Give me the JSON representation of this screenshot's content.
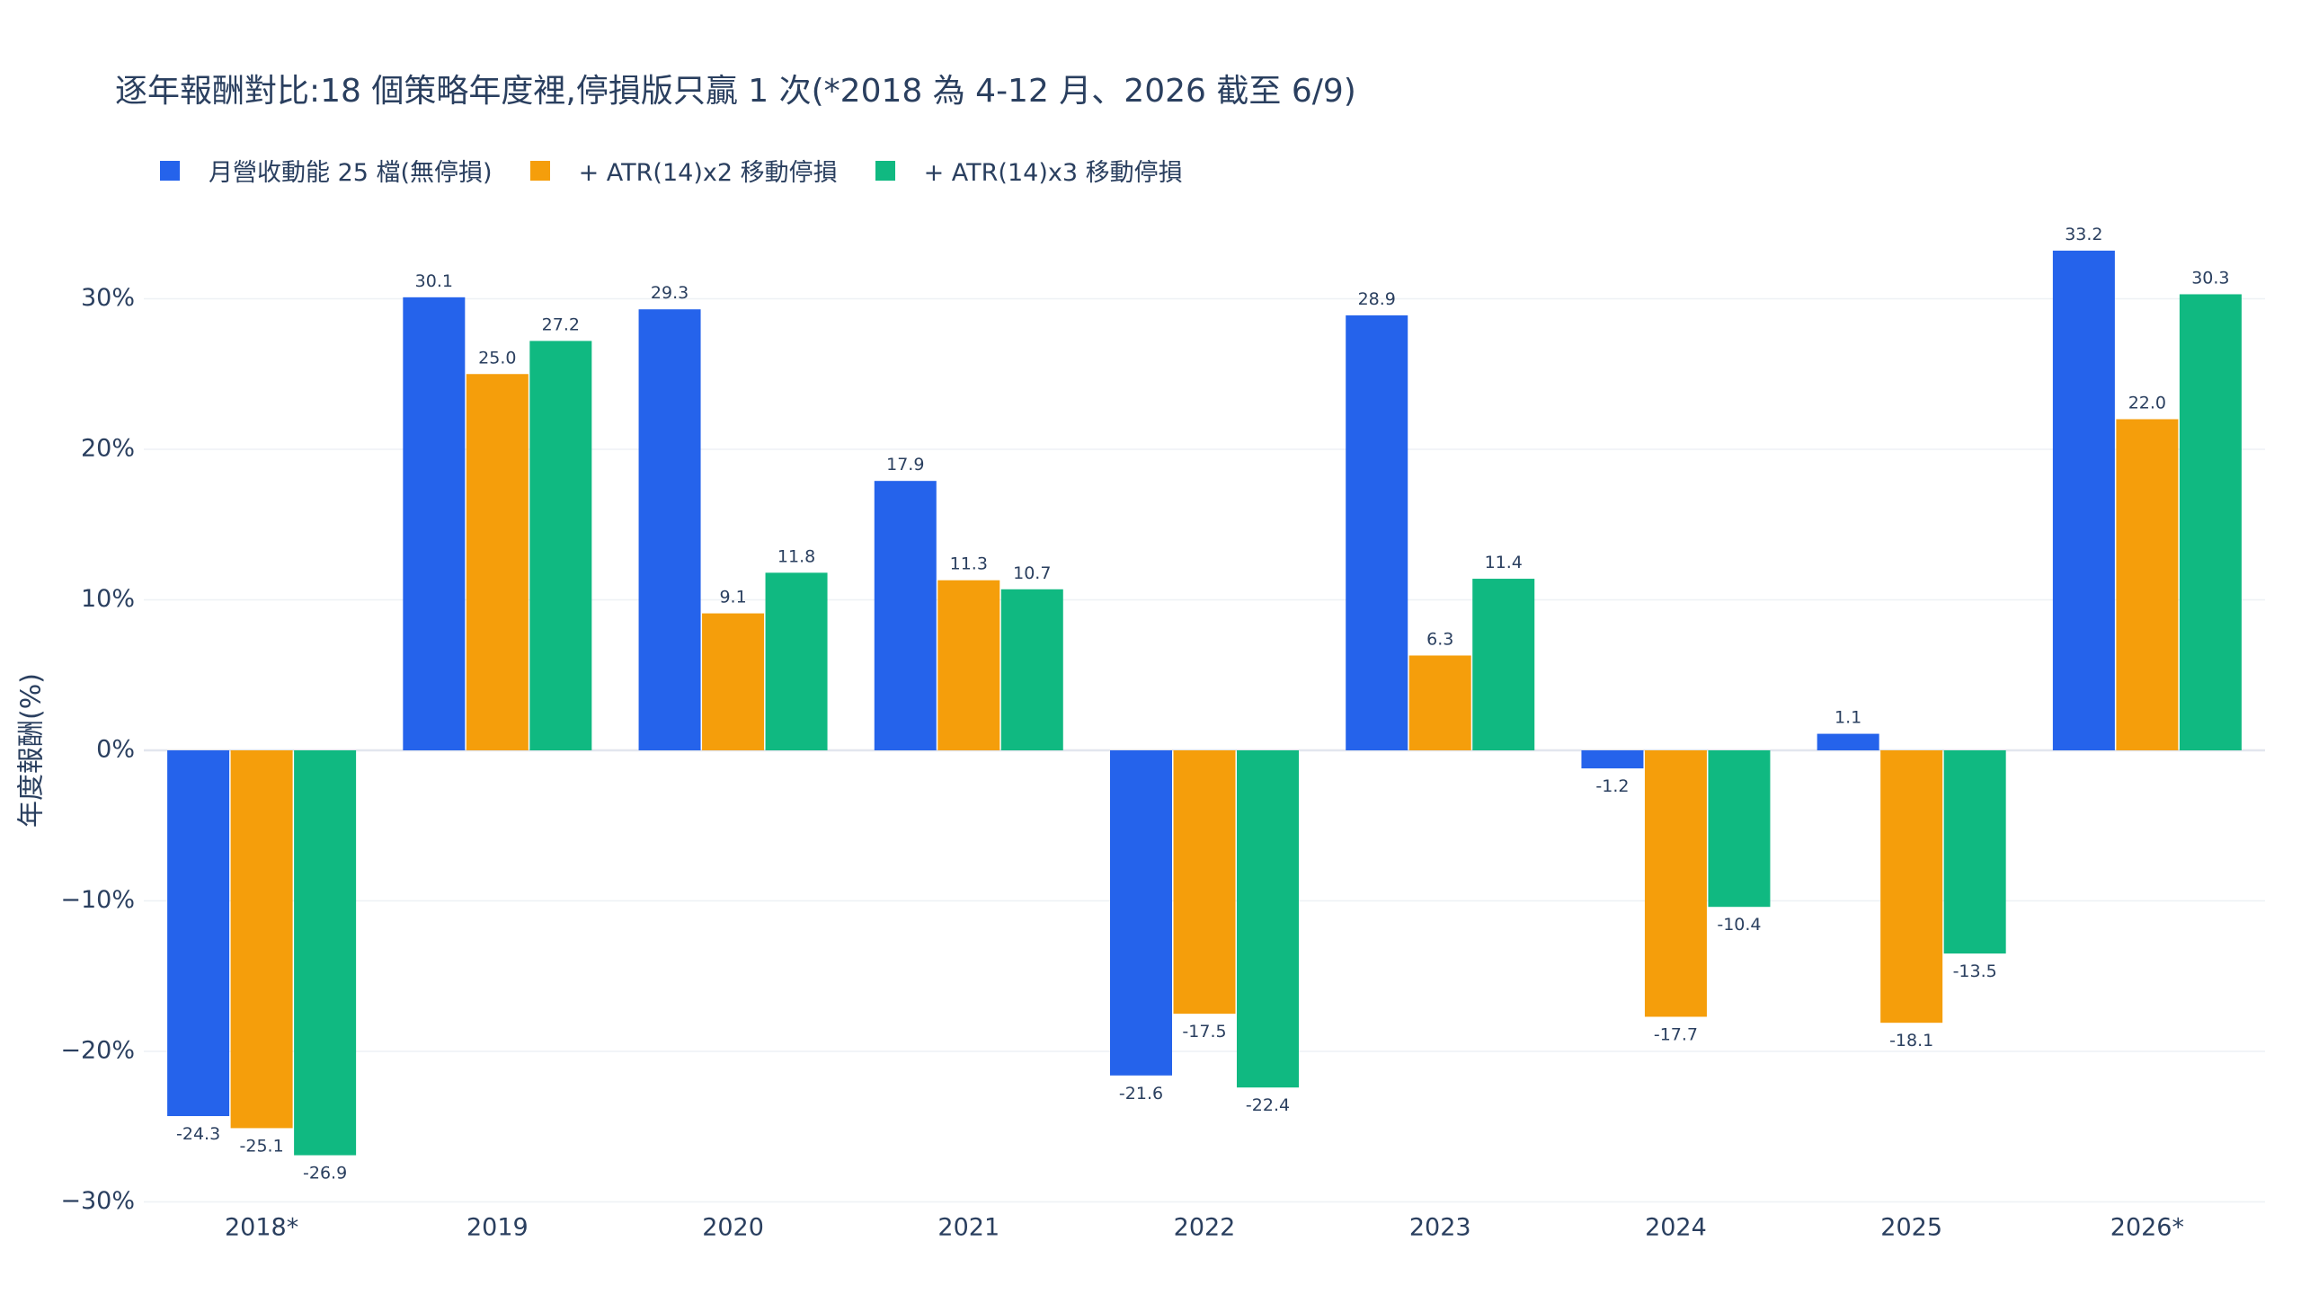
{
  "chart_data": {
    "type": "bar",
    "title": "逐年報酬對比:18 個策略年度裡,停損版只贏 1 次(*2018 為 4-12 月、2026 截至 6/9)",
    "xlabel": "",
    "ylabel": "年度報酬(%)",
    "ylim": [
      -30,
      35
    ],
    "y_ticks": [
      30,
      20,
      10,
      0,
      -10,
      -20,
      -30
    ],
    "y_tick_labels": [
      "30%",
      "20%",
      "10%",
      "0%",
      "−10%",
      "−20%",
      "−30%"
    ],
    "grid": true,
    "legend_position": "top-left",
    "categories": [
      "2018*",
      "2019",
      "2020",
      "2021",
      "2022",
      "2023",
      "2024",
      "2025",
      "2026*"
    ],
    "series": [
      {
        "name": "月營收動能 25 檔(無停損)",
        "color": "#2563eb",
        "values": [
          -24.3,
          30.1,
          29.3,
          17.9,
          -21.6,
          28.9,
          -1.2,
          1.1,
          33.2
        ]
      },
      {
        "name": "+ ATR(14)x2 移動停損",
        "color": "#f59e0b",
        "values": [
          -25.1,
          25.0,
          9.1,
          11.3,
          -17.5,
          6.3,
          -17.7,
          -18.1,
          22.0
        ]
      },
      {
        "name": "+ ATR(14)x3 移動停損",
        "color": "#10b981",
        "values": [
          -26.9,
          27.2,
          11.8,
          10.7,
          -22.4,
          11.4,
          -10.4,
          -13.5,
          30.3
        ]
      }
    ]
  }
}
